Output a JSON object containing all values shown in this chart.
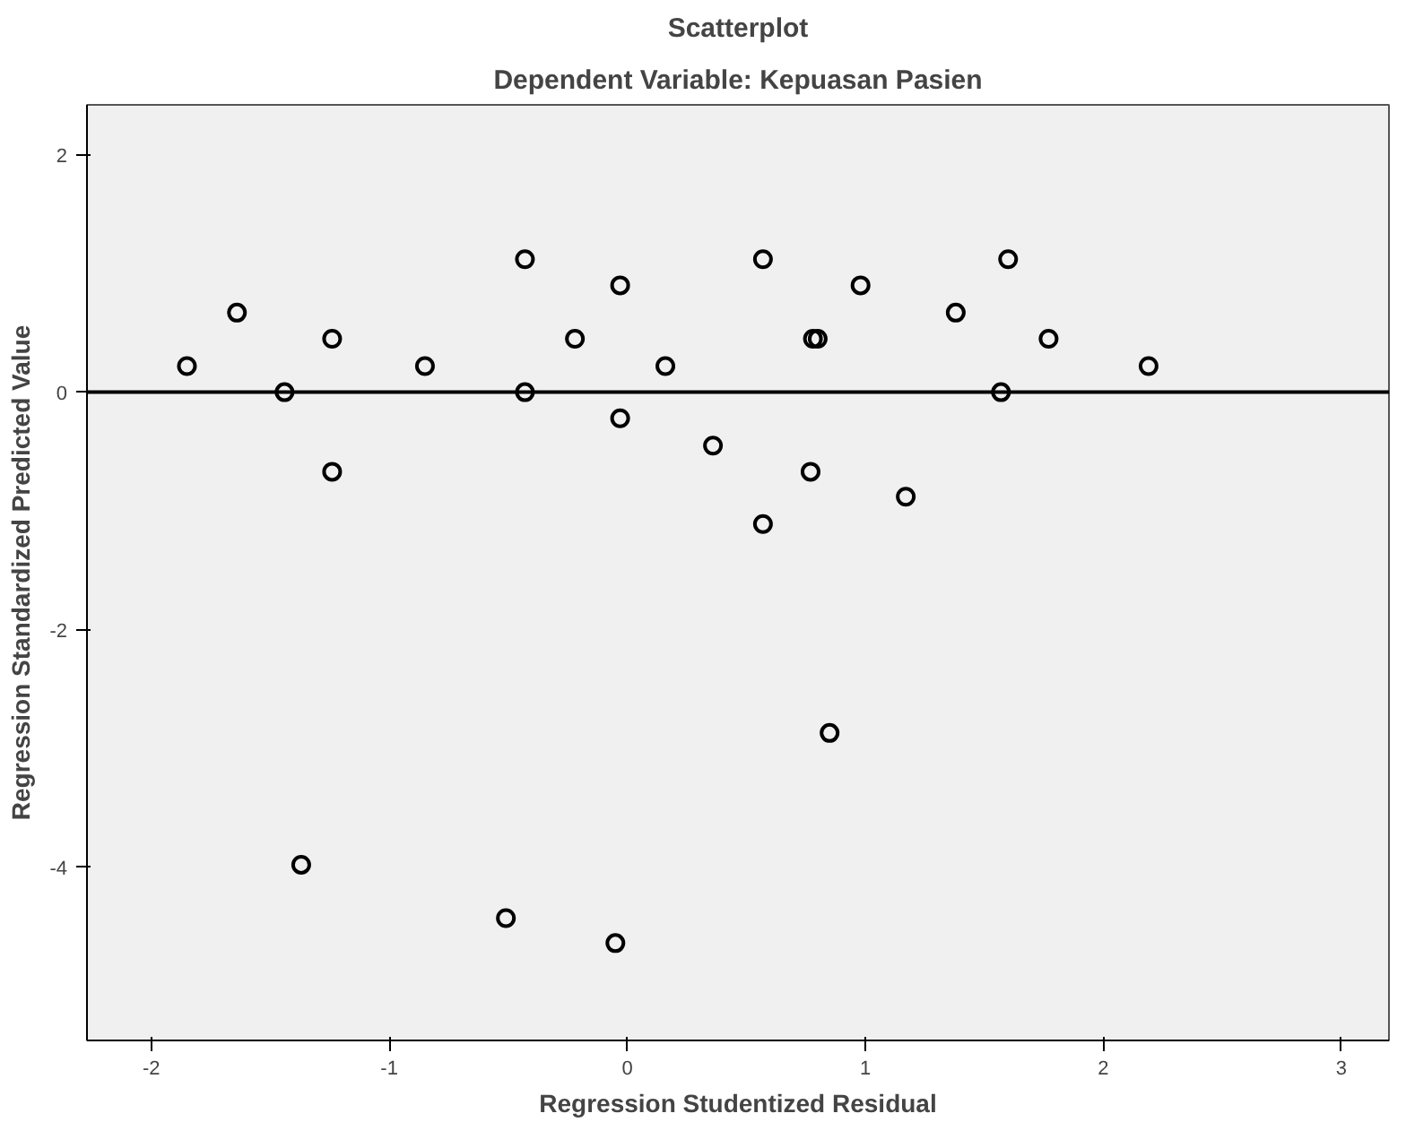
{
  "chart_data": {
    "type": "scatter",
    "title": "Scatterplot",
    "subtitle": "Dependent Variable: Kepuasan Pasien",
    "xlabel": "Regression Studentized Residual",
    "ylabel": "Regression Standardized Predicted Value",
    "x": [
      -1.85,
      -1.64,
      -1.44,
      -1.24,
      -1.24,
      -0.85,
      -0.43,
      -0.43,
      -0.22,
      -0.03,
      -0.03,
      0.16,
      0.36,
      0.57,
      0.57,
      0.77,
      0.78,
      0.8,
      0.98,
      1.17,
      1.38,
      1.57,
      1.6,
      1.77,
      2.19,
      -1.37,
      -0.51,
      -0.05,
      0.85
    ],
    "series": [
      {
        "color": "#000000",
        "values": [
          0.22,
          0.67,
          0,
          0.45,
          -0.67,
          0.22,
          1.12,
          0,
          0.45,
          0.9,
          -0.22,
          0.22,
          -0.45,
          1.12,
          -1.11,
          -0.67,
          0.45,
          0.45,
          0.9,
          -0.88,
          0.67,
          0,
          1.12,
          0.45,
          0.22,
          -3.98,
          -4.43,
          -4.64,
          -2.87
        ]
      }
    ],
    "xlim": [
      -2.27,
      3.2
    ],
    "ylim": [
      -5.46,
      2.42
    ],
    "xticks": [
      -2,
      -1,
      0,
      1,
      2,
      3
    ],
    "yticks": [
      -4,
      -2,
      0,
      2
    ],
    "ref_lines": [
      {
        "axis": "y",
        "value": 0,
        "color": "#000000"
      }
    ],
    "marker": "circle",
    "grid": false
  }
}
